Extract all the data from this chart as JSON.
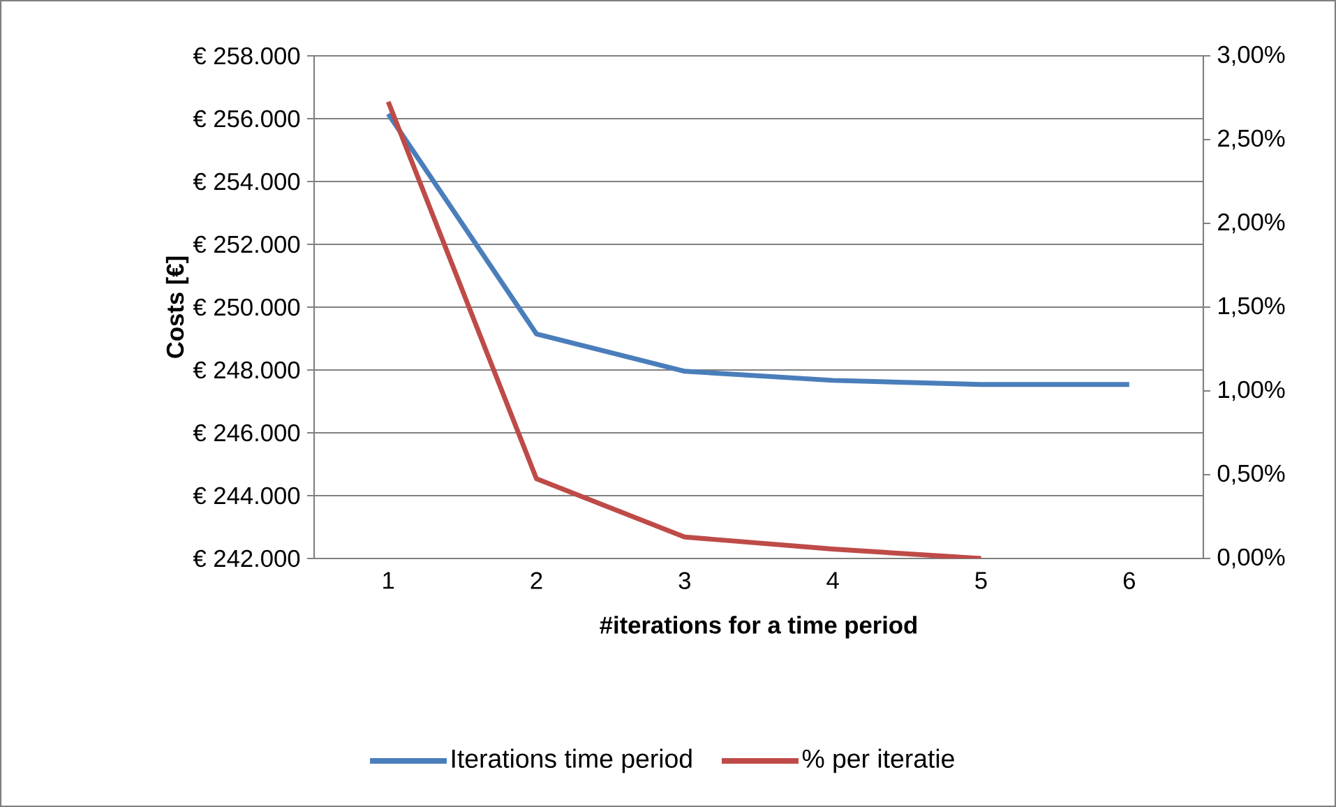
{
  "chart_data": {
    "type": "line",
    "categories": [
      "1",
      "2",
      "3",
      "4",
      "5",
      "6"
    ],
    "xlabel": "#iterations  for a time period",
    "ylabel": "Costs [€]",
    "series": [
      {
        "name": "Iterations time period",
        "color": "#4a7ebb",
        "values": [
          256150,
          249150,
          247960,
          247670,
          247540,
          247540
        ]
      },
      {
        "name": "% per iteratie",
        "color": "#be4b48",
        "axis": "y2",
        "values": [
          2.726,
          0.476,
          0.128,
          0.056,
          0,
          null
        ]
      }
    ],
    "ylim": [
      242000,
      258000
    ],
    "yticks": [
      {
        "value": 242000,
        "label": "€ 242.000"
      },
      {
        "value": 244000,
        "label": "€ 244.000"
      },
      {
        "value": 246000,
        "label": "€ 246.000"
      },
      {
        "value": 248000,
        "label": "€ 248.000"
      },
      {
        "value": 250000,
        "label": "€ 250.000"
      },
      {
        "value": 252000,
        "label": "€ 252.000"
      },
      {
        "value": 254000,
        "label": "€ 254.000"
      },
      {
        "value": 256000,
        "label": "€ 256.000"
      },
      {
        "value": 258000,
        "label": "€ 258.000"
      }
    ],
    "y2lim": [
      0,
      3
    ],
    "y2ticks": [
      {
        "value": 0,
        "label": "0,00%"
      },
      {
        "value": 0.5,
        "label": "0,50%"
      },
      {
        "value": 1,
        "label": "1,00%"
      },
      {
        "value": 1.5,
        "label": "1,50%"
      },
      {
        "value": 2,
        "label": "2,00%"
      },
      {
        "value": 2.5,
        "label": "2,50%"
      },
      {
        "value": 3,
        "label": "3,00%"
      }
    ],
    "grid": "y",
    "legend": "bottom",
    "marker": "none",
    "line_style": "solid"
  }
}
